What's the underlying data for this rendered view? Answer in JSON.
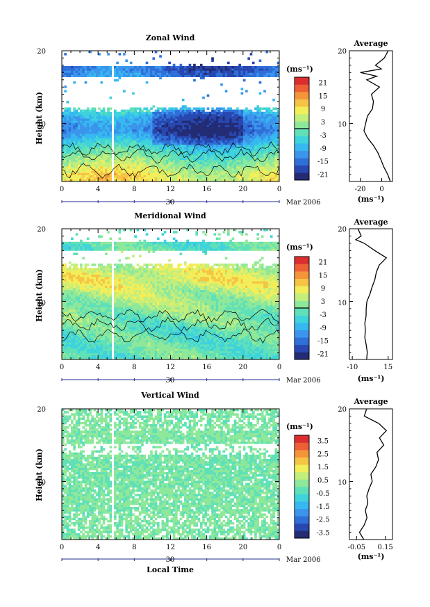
{
  "figure": {
    "xlabel": "Local Time",
    "date_label": "Mar 2006",
    "day_label": "30",
    "ylabel": "Height (km)",
    "unit_label": "(ms⁻¹)",
    "average_title": "Average",
    "colormap": [
      "#232c74",
      "#2847b0",
      "#2f6fd8",
      "#3b95ec",
      "#36b8f0",
      "#3fd3dc",
      "#5fe0b8",
      "#8ee89a",
      "#c3ee7c",
      "#f2ee5a",
      "#f6c444",
      "#f5953a",
      "#ee5f35",
      "#dc2e2e"
    ],
    "x_ticks": [
      "0",
      "4",
      "8",
      "12",
      "16",
      "20",
      "0"
    ],
    "y_ticks": [
      "20",
      "10"
    ]
  },
  "chart_data": [
    {
      "type": "heatmap",
      "title": "Zonal Wind",
      "xlabel": "Local Time",
      "ylabel": "Height (km)",
      "xlim": [
        0,
        24
      ],
      "ylim": [
        2,
        20
      ],
      "colorbar": {
        "label": "(ms⁻¹)",
        "ticks": [
          "21",
          "15",
          "9",
          "3",
          "-3",
          "-9",
          "-15",
          "-21"
        ],
        "range": [
          -24,
          24
        ],
        "contour_level": 0
      },
      "field_description_by_height": [
        {
          "height": 3,
          "value": 8
        },
        {
          "height": 5,
          "value": 1
        },
        {
          "height": 7,
          "value": -6
        },
        {
          "height": 9,
          "value": -15
        },
        {
          "height": 11,
          "value": -11
        },
        {
          "height": 12,
          "value": -5
        },
        {
          "height": 16,
          "value": -12
        },
        {
          "height": 17.5,
          "value": -16
        }
      ],
      "average_profile": {
        "xlabel": "(ms⁻¹)",
        "xticks": [
          "-20",
          "0"
        ],
        "xlim": [
          -30,
          10
        ],
        "height": [
          2,
          3,
          4,
          5,
          6,
          7,
          8,
          9,
          10,
          11,
          12,
          13,
          14,
          15,
          16,
          16.5,
          17,
          17.5,
          18,
          19,
          20
        ],
        "value": [
          8,
          5,
          2,
          -1,
          -4,
          -8,
          -13,
          -16,
          -15,
          -13,
          -9,
          -8,
          -10,
          -2,
          -14,
          -5,
          -20,
          0,
          -6,
          2,
          6
        ]
      }
    },
    {
      "type": "heatmap",
      "title": "Meridional Wind",
      "xlabel": "Local Time",
      "ylabel": "Height (km)",
      "xlim": [
        0,
        24
      ],
      "ylim": [
        2,
        20
      ],
      "colorbar": {
        "label": "(ms⁻¹)",
        "ticks": [
          "21",
          "15",
          "9",
          "3",
          "-3",
          "-9",
          "-15",
          "-21"
        ],
        "range": [
          -24,
          24
        ],
        "contour_level": 0
      },
      "field_description_by_height": [
        {
          "height": 3,
          "value": -1
        },
        {
          "height": 6,
          "value": -2
        },
        {
          "height": 9,
          "value": 2
        },
        {
          "height": 11,
          "value": 4
        },
        {
          "height": 13,
          "value": 8
        },
        {
          "height": 15,
          "value": 5
        },
        {
          "height": 17.5,
          "value": -2
        }
      ],
      "average_profile": {
        "xlabel": "(ms⁻¹)",
        "xticks": [
          "-10",
          "15"
        ],
        "xlim": [
          -12,
          18
        ],
        "height": [
          2,
          3,
          4,
          5,
          6,
          7,
          8,
          9,
          10,
          11,
          12,
          13,
          14,
          15,
          16,
          17,
          18,
          18.5,
          19,
          20
        ],
        "value": [
          0,
          0,
          0,
          -1,
          -1,
          -1,
          0,
          0,
          0,
          2,
          4,
          6,
          7,
          9,
          14,
          6,
          -2,
          -8,
          -4,
          -6
        ]
      }
    },
    {
      "type": "heatmap",
      "title": "Vertical Wind",
      "xlabel": "Local Time",
      "ylabel": "Height (km)",
      "xlim": [
        0,
        24
      ],
      "ylim": [
        2,
        20
      ],
      "colorbar": {
        "label": "(ms⁻¹)",
        "ticks": [
          "3.5",
          "2.5",
          "1.5",
          "0.5",
          "-0.5",
          "-1.5",
          "-2.5",
          "-3.5"
        ],
        "range": [
          -4,
          4
        ]
      },
      "field_description_by_height": [
        {
          "height": 3,
          "value": 0.1
        },
        {
          "height": 8,
          "value": 0.05
        },
        {
          "height": 12,
          "value": 0.0
        },
        {
          "height": 16,
          "value": 0.1
        },
        {
          "height": 19,
          "value": 0.05
        }
      ],
      "average_profile": {
        "xlabel": "(ms⁻¹)",
        "xticks": [
          "-0.05",
          "0.15"
        ],
        "xlim": [
          -0.1,
          0.2
        ],
        "height": [
          2,
          3,
          4,
          5,
          6,
          7,
          8,
          9,
          10,
          11,
          12,
          13,
          14,
          15,
          16,
          17,
          18,
          19,
          20
        ],
        "value": [
          0.0,
          -0.03,
          0.0,
          0.02,
          0.01,
          0.03,
          0.02,
          0.04,
          0.06,
          0.05,
          0.08,
          0.1,
          0.09,
          0.14,
          0.11,
          0.16,
          0.1,
          0.0,
          0.02
        ]
      }
    }
  ]
}
